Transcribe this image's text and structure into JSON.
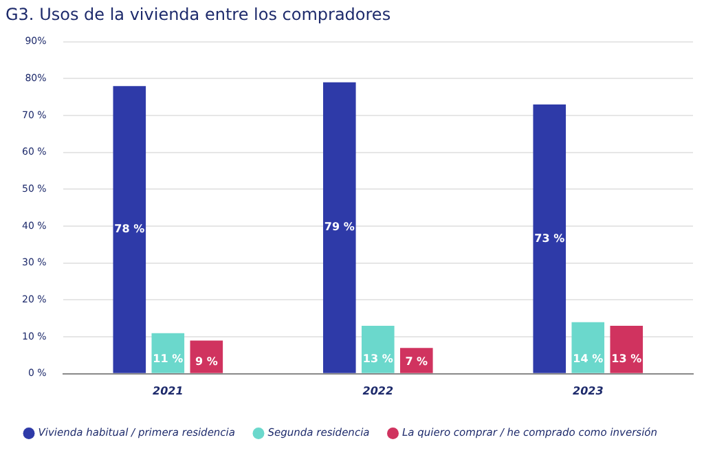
{
  "chart_data": {
    "type": "bar",
    "title": "G3. Usos de la vivienda entre los compradores",
    "categories": [
      "2021",
      "2022",
      "2023"
    ],
    "series": [
      {
        "name": "Vivienda habitual / primera residencia",
        "color": "#2e3aa8",
        "values": [
          78,
          79,
          73
        ],
        "value_labels": [
          "78 %",
          "79 %",
          "73 %"
        ]
      },
      {
        "name": "Segunda residencia",
        "color": "#6bd8cc",
        "values": [
          11,
          13,
          14
        ],
        "value_labels": [
          "11 %",
          "13 %",
          "14 %"
        ]
      },
      {
        "name": "La quiero comprar / he comprado como inversión",
        "color": "#d0335f",
        "values": [
          9,
          7,
          13
        ],
        "value_labels": [
          "9 %",
          "7 %",
          "13 %"
        ]
      }
    ],
    "ylim": [
      0,
      90
    ],
    "yticks": [
      {
        "value": 0,
        "label": "0 %"
      },
      {
        "value": 10,
        "label": "10 %"
      },
      {
        "value": 20,
        "label": "20 %"
      },
      {
        "value": 30,
        "label": "30 %"
      },
      {
        "value": 40,
        "label": "40 %"
      },
      {
        "value": 50,
        "label": "50 %"
      },
      {
        "value": 60,
        "label": "60 %"
      },
      {
        "value": 70,
        "label": "70 %"
      },
      {
        "value": 80,
        "label": "80%"
      },
      {
        "value": 90,
        "label": "90%"
      }
    ],
    "grid": "y",
    "legend": "bottom"
  }
}
